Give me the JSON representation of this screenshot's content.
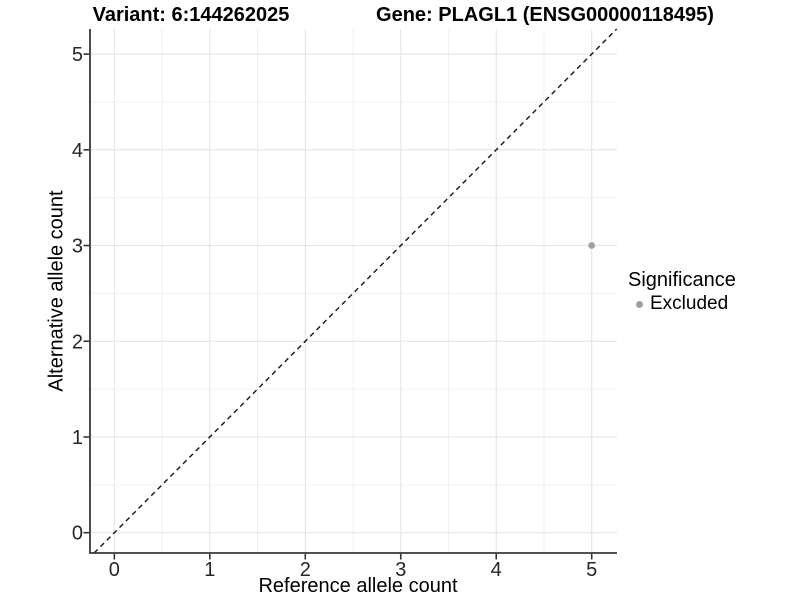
{
  "titles": {
    "variant": "Variant: 6:144262025",
    "gene": "Gene: PLAGL1 (ENSG00000118495)"
  },
  "axis": {
    "x_label": "Reference allele count",
    "y_label": "Alternative allele count"
  },
  "legend": {
    "title": "Significance",
    "items": [
      {
        "label": "Excluded",
        "color": "#a0a0a0"
      }
    ]
  },
  "chart_data": {
    "type": "scatter",
    "title": "Variant: 6:144262025 — Gene: PLAGL1 (ENSG00000118495)",
    "xlabel": "Reference allele count",
    "ylabel": "Alternative allele count",
    "xlim": [
      -0.255,
      5.265
    ],
    "ylim": [
      -0.212,
      5.262
    ],
    "x_ticks": [
      0,
      1,
      2,
      3,
      4,
      5
    ],
    "y_ticks": [
      0,
      1,
      2,
      3,
      4,
      5
    ],
    "minor_grid_step": 0.5,
    "grid": "major+minor",
    "points": [
      {
        "x": 5,
        "y": 3,
        "series": "Excluded"
      }
    ],
    "series": [
      {
        "name": "Excluded",
        "color": "#a0a0a0"
      }
    ],
    "identity_line": {
      "equation": "y = x",
      "style": "dashed",
      "color": "#141414"
    },
    "legend_title": "Significance",
    "legend_position": "right"
  },
  "style": {
    "background": "#ffffff",
    "grid_major_color": "#e4e4e4",
    "grid_minor_color": "#f0f0f0",
    "axis_line_color": "#383838",
    "tick_mark_color": "#333333",
    "tick_label_color": "#262626",
    "point_color": "#a0a0a0",
    "point_radius": 3.4
  }
}
